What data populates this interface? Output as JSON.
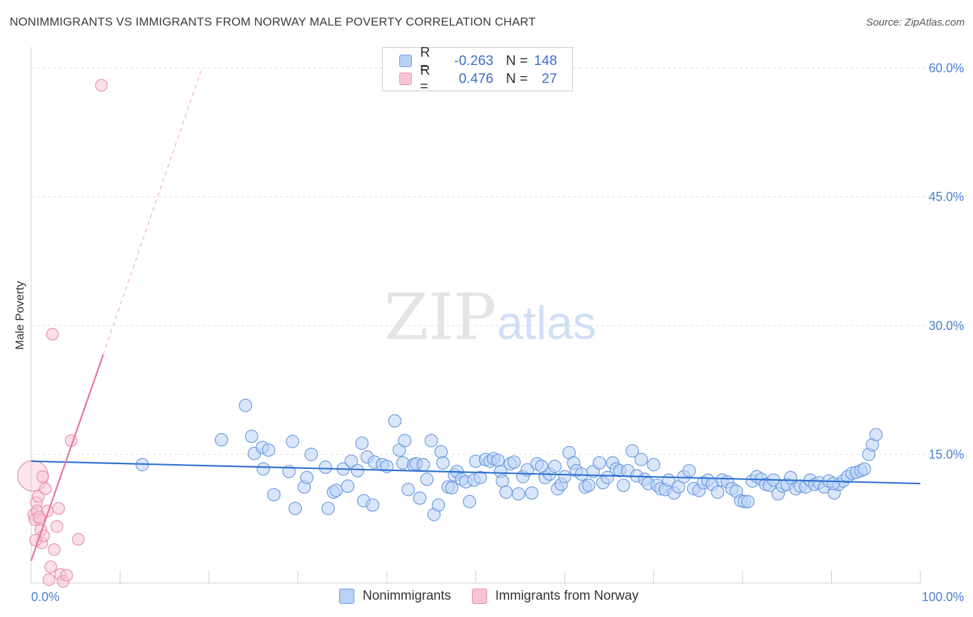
{
  "title": "NONIMMIGRANTS VS IMMIGRANTS FROM NORWAY MALE POVERTY CORRELATION CHART",
  "source": "Source: ZipAtlas.com",
  "watermark": {
    "zip": "ZIP",
    "atlas": "atlas"
  },
  "legend": {
    "rows": [
      {
        "r_label": "R =",
        "r_value": "-0.263",
        "n_label": "N =",
        "n_value": "148",
        "fill": "#b9d1f5",
        "stroke": "#6a9be0"
      },
      {
        "r_label": "R =",
        "r_value": "0.476",
        "n_label": "N =",
        "n_value": "27",
        "fill": "#f8c5d4",
        "stroke": "#e890ab"
      }
    ]
  },
  "bottom_legend": [
    "Nonimmigrants",
    "Immigrants from Norway"
  ],
  "colors": {
    "blue_fill": "#b9d1f5",
    "blue_stroke": "#6a9be0",
    "blue_line": "#2f6fd0",
    "pink_fill": "#f8c5d4",
    "pink_stroke": "#e890ab",
    "pink_line": "#e8729b",
    "tick_text": "#4a7fd0",
    "grid": "#dddddd"
  },
  "chart_data": {
    "type": "scatter",
    "xlabel": "",
    "ylabel": "Male Poverty",
    "xlim": [
      0,
      100
    ],
    "ylim": [
      0,
      60
    ],
    "x_tick_labels": [
      "0.0%",
      "100.0%"
    ],
    "y_ticks": [
      15,
      30,
      45,
      60
    ],
    "y_tick_labels": [
      "15.0%",
      "30.0%",
      "45.0%",
      "60.0%"
    ],
    "series": [
      {
        "name": "Nonimmigrants",
        "color": "#6a9be0",
        "trend": {
          "x": [
            0,
            100
          ],
          "y": [
            14.2,
            11.6
          ]
        },
        "points": [
          [
            12.5,
            13.8
          ],
          [
            21.4,
            16.7
          ],
          [
            24.1,
            20.7
          ],
          [
            24.8,
            17.1
          ],
          [
            25.1,
            15.1
          ],
          [
            26.0,
            15.8
          ],
          [
            26.1,
            13.3
          ],
          [
            26.7,
            15.5
          ],
          [
            27.3,
            10.3
          ],
          [
            29.0,
            13.0
          ],
          [
            29.4,
            16.5
          ],
          [
            29.7,
            8.7
          ],
          [
            30.7,
            11.2
          ],
          [
            31.0,
            12.3
          ],
          [
            31.5,
            15.0
          ],
          [
            33.1,
            13.5
          ],
          [
            33.4,
            8.7
          ],
          [
            34.0,
            10.6
          ],
          [
            34.3,
            10.8
          ],
          [
            35.1,
            13.3
          ],
          [
            35.6,
            11.3
          ],
          [
            36.0,
            14.2
          ],
          [
            36.7,
            13.1
          ],
          [
            37.2,
            16.3
          ],
          [
            37.4,
            9.6
          ],
          [
            37.8,
            14.7
          ],
          [
            38.4,
            9.1
          ],
          [
            38.6,
            14.1
          ],
          [
            39.5,
            13.8
          ],
          [
            40.0,
            13.6
          ],
          [
            40.9,
            18.9
          ],
          [
            41.4,
            15.5
          ],
          [
            41.8,
            14.0
          ],
          [
            42.0,
            16.6
          ],
          [
            42.4,
            10.9
          ],
          [
            43.0,
            13.8
          ],
          [
            43.3,
            13.9
          ],
          [
            43.7,
            9.9
          ],
          [
            44.1,
            13.8
          ],
          [
            44.5,
            12.1
          ],
          [
            45.0,
            16.6
          ],
          [
            45.3,
            8.0
          ],
          [
            45.8,
            9.1
          ],
          [
            46.1,
            15.3
          ],
          [
            46.3,
            14.0
          ],
          [
            46.9,
            11.2
          ],
          [
            47.3,
            11.1
          ],
          [
            47.6,
            12.6
          ],
          [
            47.9,
            13.0
          ],
          [
            48.4,
            12.1
          ],
          [
            48.9,
            11.8
          ],
          [
            49.3,
            9.5
          ],
          [
            49.8,
            12.0
          ],
          [
            50.0,
            14.2
          ],
          [
            50.5,
            12.3
          ],
          [
            51.1,
            14.4
          ],
          [
            51.6,
            14.2
          ],
          [
            52.0,
            14.5
          ],
          [
            52.5,
            14.3
          ],
          [
            52.8,
            13.0
          ],
          [
            53.0,
            11.9
          ],
          [
            53.4,
            10.6
          ],
          [
            53.9,
            13.9
          ],
          [
            54.3,
            14.1
          ],
          [
            54.8,
            10.4
          ],
          [
            55.3,
            12.4
          ],
          [
            55.8,
            13.2
          ],
          [
            56.3,
            10.5
          ],
          [
            56.9,
            13.9
          ],
          [
            57.4,
            13.6
          ],
          [
            57.8,
            12.3
          ],
          [
            58.3,
            12.7
          ],
          [
            58.9,
            13.6
          ],
          [
            59.2,
            11.0
          ],
          [
            59.6,
            11.5
          ],
          [
            60.0,
            12.4
          ],
          [
            60.5,
            15.2
          ],
          [
            61.0,
            14.0
          ],
          [
            61.3,
            13.1
          ],
          [
            61.9,
            12.7
          ],
          [
            62.3,
            11.2
          ],
          [
            62.7,
            11.4
          ],
          [
            63.2,
            13.0
          ],
          [
            63.9,
            14.0
          ],
          [
            64.3,
            11.7
          ],
          [
            64.8,
            12.3
          ],
          [
            65.4,
            14.0
          ],
          [
            65.8,
            13.3
          ],
          [
            66.2,
            13.1
          ],
          [
            66.6,
            11.4
          ],
          [
            67.1,
            13.1
          ],
          [
            67.6,
            15.4
          ],
          [
            68.1,
            12.5
          ],
          [
            68.6,
            14.4
          ],
          [
            69.0,
            12.1
          ],
          [
            69.4,
            11.6
          ],
          [
            70.0,
            13.8
          ],
          [
            70.4,
            11.4
          ],
          [
            70.8,
            11.0
          ],
          [
            71.3,
            10.9
          ],
          [
            71.7,
            12.0
          ],
          [
            72.3,
            10.5
          ],
          [
            72.8,
            11.2
          ],
          [
            73.4,
            12.4
          ],
          [
            74.0,
            13.1
          ],
          [
            74.5,
            11.0
          ],
          [
            75.1,
            10.8
          ],
          [
            75.6,
            11.7
          ],
          [
            76.1,
            12.0
          ],
          [
            76.6,
            11.5
          ],
          [
            77.2,
            10.6
          ],
          [
            77.7,
            12.0
          ],
          [
            78.3,
            11.8
          ],
          [
            78.8,
            11.0
          ],
          [
            79.3,
            10.7
          ],
          [
            79.8,
            9.6
          ],
          [
            80.2,
            9.5
          ],
          [
            80.6,
            9.5
          ],
          [
            81.1,
            11.9
          ],
          [
            81.6,
            12.4
          ],
          [
            82.1,
            12.1
          ],
          [
            82.6,
            11.5
          ],
          [
            83.0,
            11.4
          ],
          [
            83.5,
            12.0
          ],
          [
            84.0,
            10.4
          ],
          [
            84.5,
            11.3
          ],
          [
            85.0,
            11.5
          ],
          [
            85.4,
            12.3
          ],
          [
            86.0,
            11.0
          ],
          [
            86.5,
            11.3
          ],
          [
            87.1,
            11.2
          ],
          [
            87.6,
            12.0
          ],
          [
            88.1,
            11.5
          ],
          [
            88.6,
            11.7
          ],
          [
            89.2,
            11.2
          ],
          [
            89.7,
            11.9
          ],
          [
            90.3,
            10.5
          ],
          [
            90.8,
            11.5
          ],
          [
            91.3,
            11.9
          ],
          [
            91.8,
            12.4
          ],
          [
            92.3,
            12.8
          ],
          [
            92.8,
            12.9
          ],
          [
            93.3,
            13.1
          ],
          [
            93.7,
            13.3
          ],
          [
            94.2,
            15.0
          ],
          [
            94.6,
            16.1
          ],
          [
            95.0,
            17.3
          ],
          [
            90.2,
            11.6
          ]
        ]
      },
      {
        "name": "Immigrants from Norway",
        "color": "#e890ab",
        "trend": {
          "x": [
            0,
            8.1
          ],
          "y": [
            2.6,
            26.6
          ]
        },
        "trend_extended": {
          "x": [
            8.1,
            19.2
          ],
          "y": [
            26.6,
            60
          ]
        },
        "points": [
          [
            0.2,
            12.5
          ],
          [
            0.3,
            8.0
          ],
          [
            0.4,
            7.4
          ],
          [
            0.6,
            9.4
          ],
          [
            0.7,
            8.4
          ],
          [
            0.8,
            10.1
          ],
          [
            1.0,
            7.4
          ],
          [
            1.1,
            6.2
          ],
          [
            1.2,
            4.7
          ],
          [
            1.3,
            12.4
          ],
          [
            1.4,
            5.5
          ],
          [
            1.6,
            11.0
          ],
          [
            1.8,
            8.4
          ],
          [
            2.0,
            0.4
          ],
          [
            2.2,
            1.9
          ],
          [
            2.4,
            29.0
          ],
          [
            2.6,
            3.9
          ],
          [
            2.9,
            6.6
          ],
          [
            3.1,
            8.7
          ],
          [
            3.3,
            1.0
          ],
          [
            3.6,
            0.2
          ],
          [
            4.0,
            0.9
          ],
          [
            4.5,
            16.6
          ],
          [
            5.3,
            5.1
          ],
          [
            0.5,
            5.0
          ],
          [
            0.9,
            7.7
          ],
          [
            7.9,
            58.0
          ]
        ]
      }
    ]
  }
}
